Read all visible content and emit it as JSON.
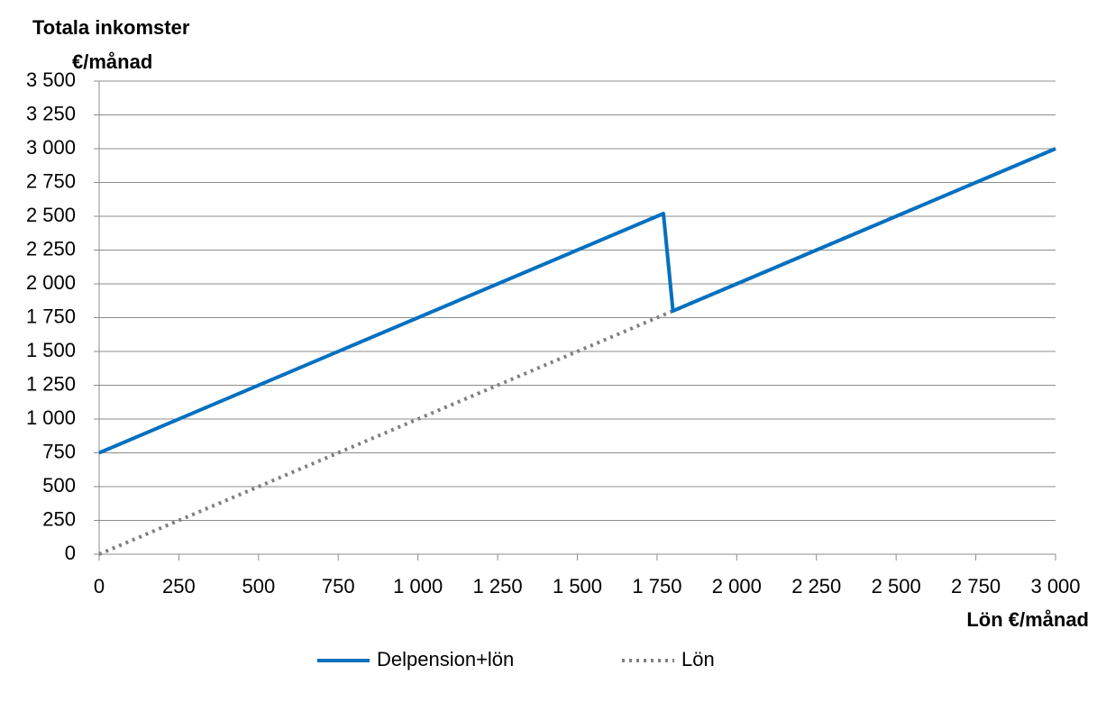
{
  "chart_data": {
    "type": "line",
    "ylabel": [
      "Totala inkomster",
      "€/månad"
    ],
    "xlabel": "Lön €/månad",
    "x": [
      0,
      1770,
      1800,
      3000
    ],
    "series": [
      {
        "name": "Delpension+lön",
        "color": "#0070c0",
        "dash": "solid",
        "values": [
          750,
          2520,
          1800,
          3000
        ]
      },
      {
        "name": "Lön",
        "color": "#808080",
        "dash": "dotted",
        "values": [
          0,
          1770,
          1800,
          3000
        ]
      }
    ],
    "xlim": [
      0,
      3000
    ],
    "xticks": [
      0,
      250,
      500,
      750,
      {
        "value": 1000,
        "label": "1 000"
      },
      {
        "value": 1250,
        "label": "1 250"
      },
      {
        "value": 1500,
        "label": "1 500"
      },
      {
        "value": 1750,
        "label": "1 750"
      },
      {
        "value": 2000,
        "label": "2 000"
      },
      {
        "value": 2250,
        "label": "2 250"
      },
      {
        "value": 2500,
        "label": "2 500"
      },
      {
        "value": 2750,
        "label": "2 750"
      },
      {
        "value": 3000,
        "label": "3 000"
      }
    ],
    "ylim": [
      0,
      3500
    ],
    "yticks": [
      0,
      250,
      500,
      750,
      {
        "value": 1000,
        "label": "1 000"
      },
      {
        "value": 1250,
        "label": "1 250"
      },
      {
        "value": 1500,
        "label": "1 500"
      },
      {
        "value": 1750,
        "label": "1 750"
      },
      {
        "value": 2000,
        "label": "2 000"
      },
      {
        "value": 2250,
        "label": "2 250"
      },
      {
        "value": 2500,
        "label": "2 500"
      },
      {
        "value": 2750,
        "label": "2 750"
      },
      {
        "value": 3000,
        "label": "3 000"
      },
      {
        "value": 3250,
        "label": "3 250"
      },
      {
        "value": 3500,
        "label": "3 500"
      }
    ],
    "grid": true,
    "legend": "bottom"
  }
}
